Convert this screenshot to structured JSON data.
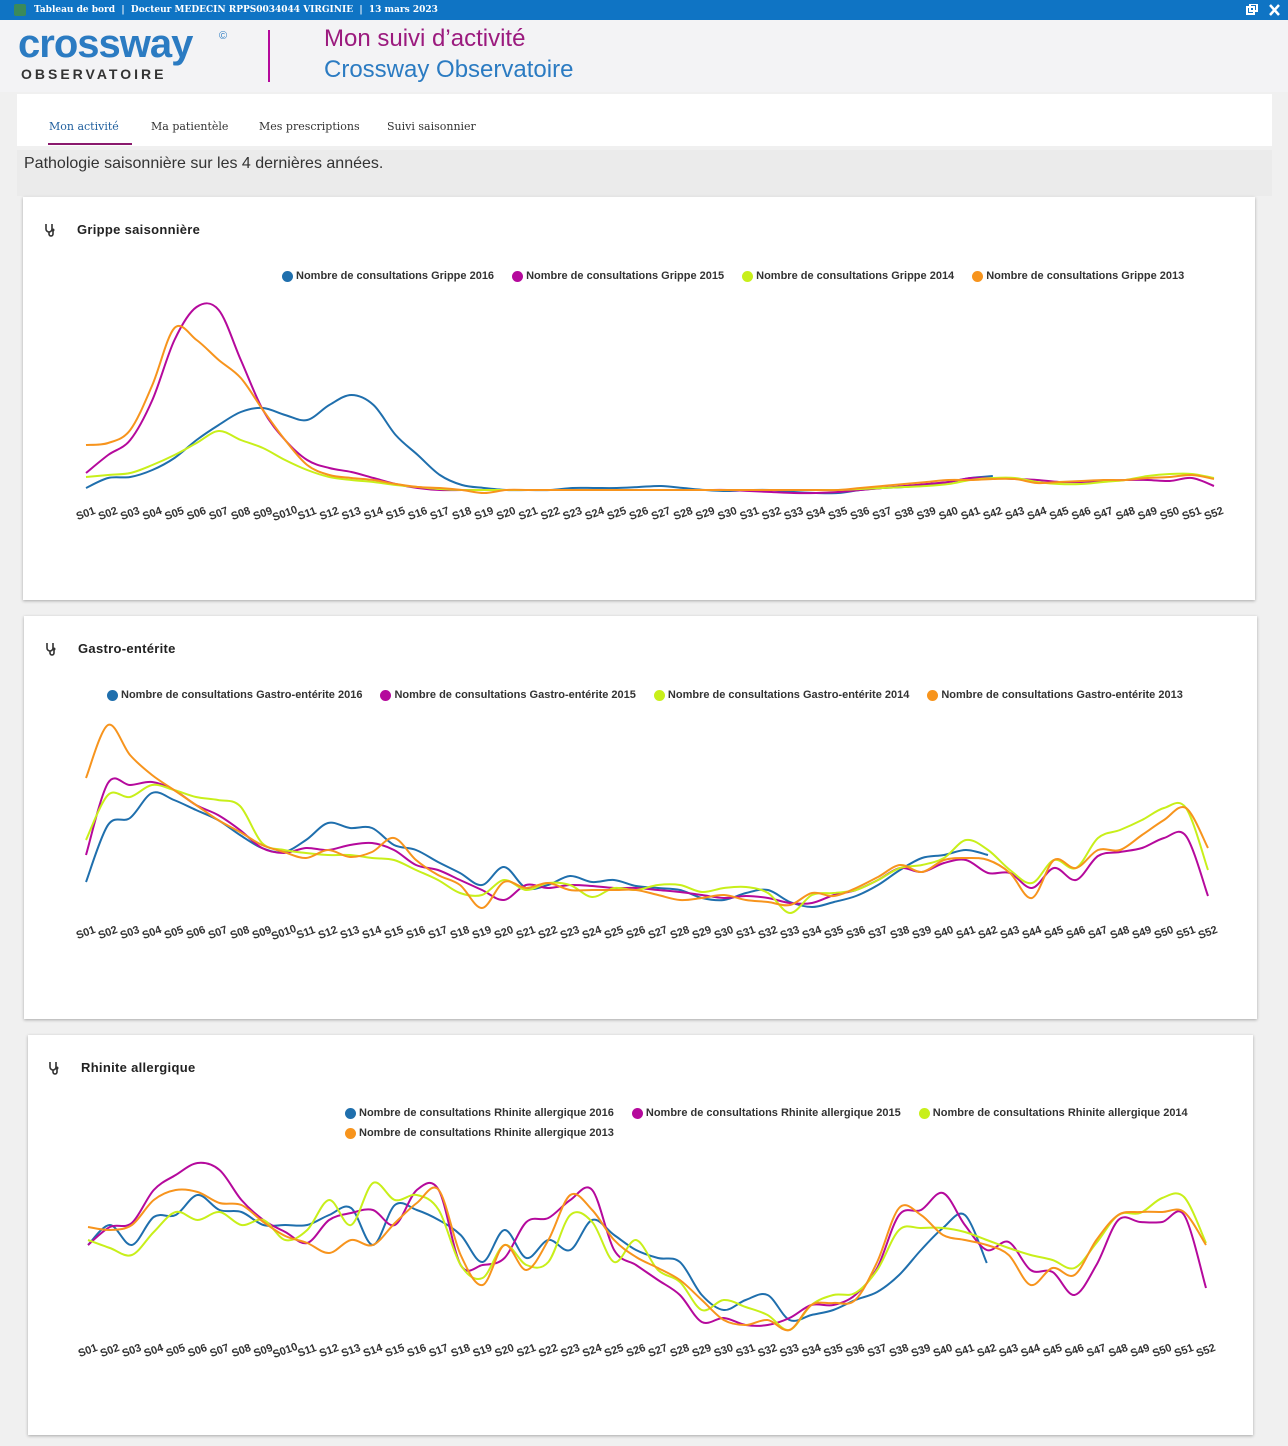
{
  "top_bar": {
    "text": "Tableau de bord  |  Docteur MEDECIN RPPS0034044 VIRGINIE  |  13 mars 2023"
  },
  "header": {
    "logo": "crossway",
    "logo_mark": "©",
    "logo_sub": "OBSERVATOIRE",
    "title": "Mon suivi d’activité",
    "subtitle": "Crossway Observatoire"
  },
  "tabs": [
    "Mon activité",
    "Ma patientèle",
    "Mes prescriptions",
    "Suivi saisonnier"
  ],
  "section_title": "Pathologie saisonnière sur les 4 dernières années.",
  "chart_data": [
    {
      "type": "line",
      "title": "Grippe saisonnière",
      "ylim": [
        0,
        200
      ],
      "categories": [
        "S01",
        "S02",
        "S03",
        "S04",
        "S05",
        "S06",
        "S07",
        "S08",
        "S09",
        "S010",
        "S11",
        "S12",
        "S13",
        "S14",
        "S15",
        "S16",
        "S17",
        "S18",
        "S19",
        "S20",
        "S21",
        "S22",
        "S23",
        "S24",
        "S25",
        "S26",
        "S27",
        "S28",
        "S29",
        "S30",
        "S31",
        "S32",
        "S33",
        "S34",
        "S35",
        "S36",
        "S37",
        "S38",
        "S39",
        "S40",
        "S41",
        "S42",
        "S43",
        "S44",
        "S45",
        "S46",
        "S47",
        "S48",
        "S49",
        "S50",
        "S51",
        "S52"
      ],
      "series": [
        {
          "name": "Nombre de consultations Grippe 2016",
          "color": "#1f6fad",
          "values": [
            12,
            22,
            23,
            30,
            42,
            60,
            75,
            88,
            92,
            85,
            80,
            95,
            105,
            95,
            65,
            45,
            25,
            15,
            12,
            10,
            10,
            10,
            12,
            12,
            12,
            13,
            14,
            12,
            10,
            9,
            10,
            10,
            8,
            7,
            7,
            10,
            12,
            13,
            15,
            18,
            22,
            24,
            null,
            null,
            null,
            null,
            null,
            null,
            null,
            null,
            null,
            null
          ]
        },
        {
          "name": "Nombre de consultations Grippe 2015",
          "color": "#b5099c",
          "values": [
            27,
            45,
            60,
            100,
            160,
            193,
            190,
            140,
            90,
            60,
            40,
            32,
            28,
            22,
            16,
            12,
            10,
            10,
            10,
            10,
            10,
            10,
            10,
            10,
            10,
            10,
            10,
            10,
            10,
            10,
            9,
            8,
            7,
            7,
            8,
            10,
            12,
            14,
            16,
            18,
            22,
            22,
            21,
            20,
            18,
            18,
            19,
            20,
            20,
            19,
            22,
            14
          ]
        },
        {
          "name": "Nombre de consultations Grippe 2014",
          "color": "#c8ef1a",
          "values": [
            23,
            25,
            27,
            35,
            45,
            57,
            69,
            60,
            52,
            40,
            30,
            23,
            20,
            18,
            15,
            13,
            11,
            10,
            10,
            10,
            10,
            10,
            10,
            10,
            10,
            10,
            10,
            10,
            10,
            10,
            10,
            10,
            10,
            10,
            10,
            11,
            12,
            13,
            14,
            16,
            20,
            22,
            22,
            18,
            16,
            16,
            18,
            20,
            24,
            26,
            26,
            22
          ]
        },
        {
          "name": "Nombre de consultations Grippe 2013",
          "color": "#f7941d",
          "values": [
            55,
            57,
            70,
            115,
            172,
            160,
            140,
            122,
            90,
            60,
            35,
            25,
            22,
            20,
            16,
            13,
            12,
            10,
            7,
            10,
            10,
            10,
            10,
            10,
            10,
            10,
            10,
            10,
            10,
            10,
            10,
            10,
            10,
            10,
            10,
            12,
            14,
            16,
            18,
            20,
            20,
            21,
            21,
            17,
            18,
            19,
            20,
            20,
            22,
            23,
            25,
            21
          ]
        }
      ]
    },
    {
      "type": "line",
      "title": "Gastro-entérite",
      "ylim": [
        0,
        200
      ],
      "categories": [
        "S01",
        "S02",
        "S03",
        "S04",
        "S05",
        "S06",
        "S07",
        "S08",
        "S09",
        "S010",
        "S11",
        "S12",
        "S13",
        "S14",
        "S15",
        "S16",
        "S17",
        "S18",
        "S19",
        "S20",
        "S21",
        "S22",
        "S23",
        "S24",
        "S25",
        "S26",
        "S27",
        "S28",
        "S29",
        "S30",
        "S31",
        "S32",
        "S33",
        "S34",
        "S35",
        "S36",
        "S37",
        "S38",
        "S39",
        "S40",
        "S41",
        "S42",
        "S43",
        "S44",
        "S45",
        "S46",
        "S47",
        "S48",
        "S49",
        "S50",
        "S51",
        "S52"
      ],
      "series": [
        {
          "name": "Nombre de consultations Gastro-entérite 2016",
          "color": "#1f6fad",
          "values": [
            38,
            95,
            102,
            127,
            120,
            110,
            100,
            85,
            72,
            68,
            80,
            97,
            92,
            92,
            75,
            70,
            58,
            47,
            35,
            53,
            32,
            35,
            44,
            38,
            40,
            34,
            32,
            30,
            22,
            20,
            27,
            30,
            18,
            13,
            18,
            24,
            35,
            50,
            62,
            65,
            70,
            65,
            null,
            null,
            null,
            null,
            null,
            null,
            null,
            null,
            null,
            null
          ]
        },
        {
          "name": "Nombre de consultations Gastro-entérite 2015",
          "color": "#b5099c",
          "values": [
            65,
            137,
            135,
            138,
            130,
            115,
            105,
            90,
            72,
            67,
            72,
            70,
            75,
            77,
            70,
            55,
            50,
            40,
            30,
            20,
            35,
            32,
            35,
            34,
            32,
            32,
            30,
            28,
            25,
            22,
            24,
            22,
            17,
            17,
            25,
            30,
            40,
            52,
            48,
            57,
            60,
            47,
            47,
            32,
            52,
            40,
            64,
            68,
            72,
            82,
            84,
            24
          ]
        },
        {
          "name": "Nombre de consultations Gastro-entérite 2014",
          "color": "#c8ef1a",
          "values": [
            80,
            125,
            123,
            135,
            130,
            123,
            120,
            114,
            77,
            70,
            67,
            65,
            65,
            62,
            60,
            50,
            40,
            27,
            25,
            40,
            30,
            37,
            35,
            23,
            32,
            30,
            35,
            35,
            28,
            32,
            33,
            27,
            7,
            25,
            27,
            30,
            40,
            52,
            55,
            62,
            80,
            70,
            50,
            37,
            60,
            52,
            82,
            90,
            100,
            112,
            112,
            50
          ]
        },
        {
          "name": "Nombre de consultations Gastro-entérite 2013",
          "color": "#f7941d",
          "values": [
            142,
            195,
            165,
            145,
            130,
            115,
            100,
            88,
            75,
            68,
            62,
            70,
            63,
            68,
            82,
            60,
            45,
            35,
            12,
            38,
            32,
            37,
            30,
            30,
            30,
            30,
            25,
            20,
            22,
            25,
            20,
            18,
            15,
            27,
            24,
            32,
            43,
            55,
            48,
            60,
            62,
            60,
            47,
            22,
            60,
            52,
            70,
            70,
            85,
            100,
            112,
            72
          ]
        }
      ]
    },
    {
      "type": "line",
      "title": "Rhinite allergique",
      "ylim": [
        0,
        200
      ],
      "categories": [
        "S01",
        "S02",
        "S03",
        "S04",
        "S05",
        "S06",
        "S07",
        "S08",
        "S09",
        "S010",
        "S11",
        "S12",
        "S13",
        "S14",
        "S15",
        "S16",
        "S17",
        "S18",
        "S19",
        "S20",
        "S21",
        "S22",
        "S23",
        "S24",
        "S25",
        "S26",
        "S27",
        "S28",
        "S29",
        "S30",
        "S31",
        "S32",
        "S33",
        "S34",
        "S35",
        "S36",
        "S37",
        "S38",
        "S39",
        "S40",
        "S41",
        "S42",
        "S43",
        "S44",
        "S45",
        "S46",
        "S47",
        "S48",
        "S49",
        "S50",
        "S51",
        "S52"
      ],
      "series": [
        {
          "name": "Nombre de consultations Rhinite allergique 2016",
          "color": "#1f6fad",
          "values": [
            95,
            115,
            95,
            123,
            125,
            145,
            130,
            128,
            115,
            115,
            115,
            125,
            132,
            95,
            135,
            130,
            120,
            105,
            78,
            110,
            82,
            100,
            90,
            120,
            105,
            90,
            82,
            78,
            45,
            30,
            40,
            45,
            20,
            25,
            30,
            40,
            48,
            65,
            90,
            112,
            125,
            77,
            null,
            null,
            null,
            null,
            null,
            null,
            null,
            null,
            null,
            null
          ]
        },
        {
          "name": "Nombre de consultations Rhinite allergique 2015",
          "color": "#b5099c",
          "values": [
            95,
            113,
            117,
            150,
            165,
            177,
            170,
            140,
            120,
            108,
            97,
            120,
            127,
            130,
            115,
            150,
            150,
            75,
            75,
            82,
            118,
            122,
            140,
            150,
            90,
            75,
            60,
            45,
            18,
            22,
            15,
            15,
            22,
            35,
            35,
            45,
            72,
            125,
            130,
            147,
            115,
            90,
            98,
            70,
            68,
            45,
            75,
            120,
            118,
            118,
            125,
            52
          ]
        },
        {
          "name": "Nombre de consultations Rhinite allergique 2014",
          "color": "#c8ef1a",
          "values": [
            100,
            92,
            85,
            108,
            128,
            120,
            128,
            115,
            120,
            100,
            110,
            140,
            115,
            157,
            140,
            145,
            130,
            75,
            62,
            95,
            75,
            78,
            125,
            118,
            78,
            100,
            70,
            58,
            30,
            40,
            33,
            25,
            10,
            35,
            45,
            47,
            70,
            110,
            112,
            112,
            108,
            100,
            92,
            85,
            80,
            72,
            97,
            125,
            127,
            142,
            143,
            97
          ]
        },
        {
          "name": "Nombre de consultations Rhinite allergique 2013",
          "color": "#f7941d",
          "values": [
            113,
            110,
            115,
            140,
            150,
            148,
            137,
            135,
            118,
            104,
            97,
            87,
            100,
            95,
            117,
            137,
            150,
            85,
            55,
            95,
            70,
            100,
            145,
            130,
            100,
            83,
            72,
            60,
            40,
            20,
            15,
            20,
            10,
            35,
            37,
            40,
            78,
            132,
            125,
            105,
            100,
            95,
            85,
            55,
            72,
            65,
            100,
            125,
            128,
            128,
            128,
            95
          ]
        }
      ]
    }
  ]
}
